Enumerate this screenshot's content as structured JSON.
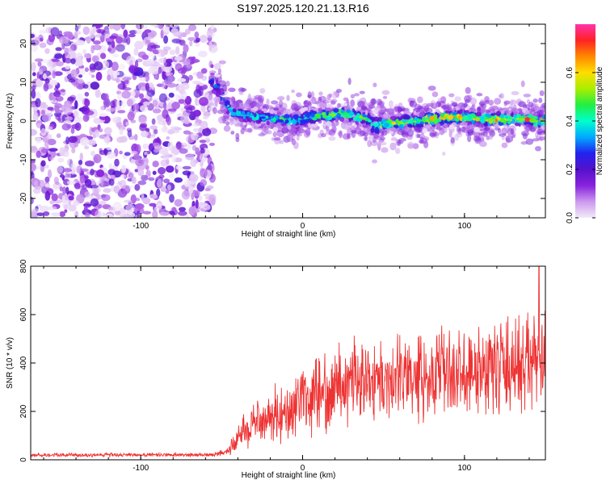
{
  "title": "S197.2025.120.21.13.R16",
  "chart_data": [
    {
      "type": "heatmap",
      "xlabel": "Height of straight line (km)",
      "ylabel": "Frequency (Hz)",
      "xlim": [
        -168,
        150
      ],
      "ylim": [
        -25,
        25
      ],
      "xticks": [
        -100,
        0,
        100
      ],
      "yticks": [
        -20,
        -10,
        0,
        10,
        20
      ],
      "colorbar": {
        "label": "Normalized spectral amplitude",
        "range": [
          0,
          0.8
        ],
        "ticks": [
          "0.0",
          "0.2",
          "0.4",
          "0.6"
        ]
      },
      "noise_region_x": [
        -168,
        -55
      ],
      "signal_ridge": {
        "x": [
          -57,
          -52,
          -47,
          -42,
          -36,
          -30,
          -24,
          -18,
          -12,
          -6,
          0,
          6,
          12,
          18,
          24,
          30,
          36,
          42,
          44,
          48,
          54,
          60,
          66,
          72,
          78,
          84,
          90,
          96,
          102,
          108,
          114,
          120,
          126,
          132,
          138,
          144,
          150
        ],
        "y": [
          11,
          8,
          4,
          2,
          1.5,
          1,
          1,
          0.5,
          0.5,
          0,
          0.5,
          1,
          1.5,
          1.5,
          2,
          1.5,
          1,
          0,
          -1.5,
          -1,
          -0.5,
          -0.5,
          0,
          0,
          0.5,
          0.5,
          1,
          1,
          1,
          0.5,
          0.5,
          0.5,
          0.5,
          0.5,
          0.5,
          0,
          0
        ],
        "width": [
          3,
          3,
          2.5,
          2.5,
          2,
          2,
          2,
          2,
          2,
          2,
          2,
          2,
          2,
          2,
          2,
          2,
          2,
          2,
          4,
          2.5,
          2,
          2,
          2,
          2,
          2,
          2,
          2,
          2,
          2,
          2,
          2,
          2,
          2,
          2,
          2,
          2,
          2
        ],
        "peak_amplitude": [
          0.3,
          0.35,
          0.4,
          0.42,
          0.45,
          0.45,
          0.45,
          0.45,
          0.5,
          0.5,
          0.5,
          0.55,
          0.55,
          0.55,
          0.6,
          0.6,
          0.55,
          0.5,
          0.45,
          0.5,
          0.6,
          0.65,
          0.65,
          0.65,
          0.7,
          0.7,
          0.7,
          0.7,
          0.7,
          0.65,
          0.7,
          0.75,
          0.7,
          0.65,
          0.75,
          0.75,
          0.7
        ]
      }
    },
    {
      "type": "line",
      "xlabel": "Height of straight line (km)",
      "ylabel": "SNR (10 * v/v)",
      "xlim": [
        -168,
        150
      ],
      "ylim": [
        0,
        800
      ],
      "xticks": [
        -100,
        0,
        100
      ],
      "yticks": [
        0,
        200,
        400,
        600,
        800
      ],
      "color": "#ee3333",
      "series": [
        {
          "x": [
            -168,
            -140,
            -110,
            -80,
            -55,
            -45,
            -38,
            -30,
            -20,
            -10,
            0,
            10,
            20,
            30,
            45,
            60,
            75,
            90,
            105,
            120,
            135,
            150
          ],
          "mean": [
            20,
            20,
            20,
            20,
            20,
            40,
            110,
            150,
            180,
            210,
            230,
            270,
            310,
            330,
            340,
            340,
            350,
            360,
            370,
            380,
            390,
            400
          ],
          "spread": [
            10,
            10,
            10,
            10,
            10,
            30,
            80,
            110,
            130,
            150,
            160,
            180,
            200,
            200,
            200,
            200,
            210,
            220,
            230,
            240,
            250,
            260
          ]
        }
      ],
      "max_value": 800,
      "max_x": 146
    }
  ],
  "colors": {
    "colormap": [
      "#f3eaf9",
      "#cc99ee",
      "#8822dd",
      "#5511cc",
      "#2222ee",
      "#00aaff",
      "#00ffcc",
      "#22ee44",
      "#aaee00",
      "#ffdd00",
      "#ff8800",
      "#ff2222",
      "#ff33aa"
    ],
    "line": "#ee3333"
  }
}
